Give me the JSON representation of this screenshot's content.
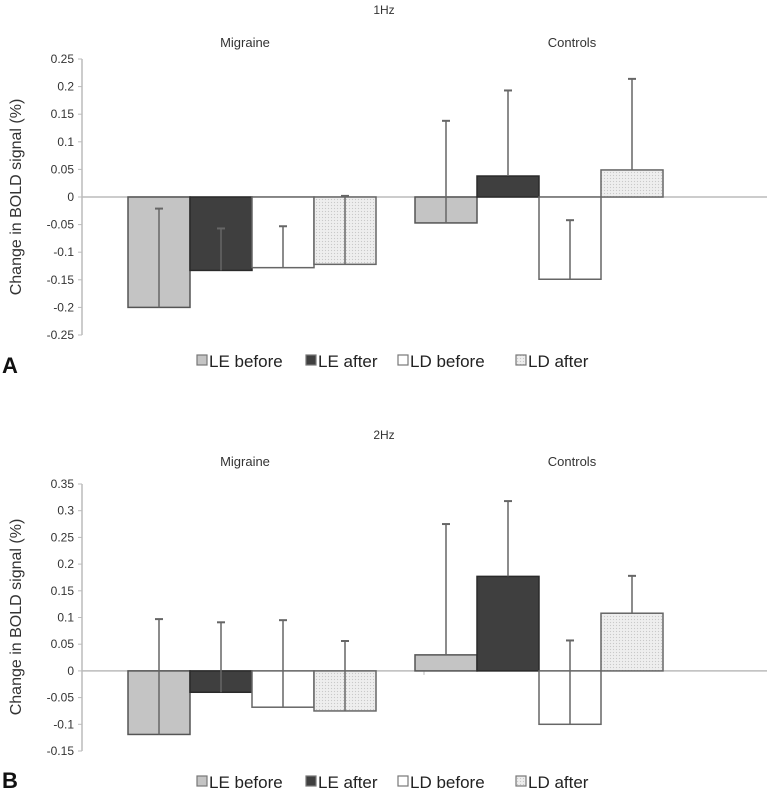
{
  "chart_data": [
    {
      "type": "bar",
      "panel": "A",
      "title": "1Hz",
      "ylabel": "Change in BOLD signal (%)",
      "xlabel": "",
      "ylim": [
        -0.25,
        0.25
      ],
      "yticks": [
        0.25,
        0.2,
        0.15,
        0.1,
        0.05,
        0,
        -0.05,
        -0.1,
        -0.15,
        -0.2,
        -0.25
      ],
      "ytick_labels": [
        "0.25",
        "0.2",
        "0.15",
        "0.1",
        "0.05",
        "0",
        "-0.05",
        "-0.1",
        "-0.15",
        "-0.2",
        "-0.25"
      ],
      "categories": [
        "Migraine",
        "Controls"
      ],
      "grid": false,
      "legend_position": "bottom",
      "series": [
        {
          "name": "LE before",
          "values": [
            -0.2,
            -0.047
          ],
          "error_upper": [
            -0.021,
            0.138
          ]
        },
        {
          "name": "LE after",
          "values": [
            -0.133,
            0.038
          ],
          "error_upper": [
            -0.057,
            0.193
          ]
        },
        {
          "name": "LD before",
          "values": [
            -0.128,
            -0.149
          ],
          "error_upper": [
            -0.053,
            -0.042
          ]
        },
        {
          "name": "LD after",
          "values": [
            -0.122,
            0.049
          ],
          "error_upper": [
            0.002,
            0.214
          ]
        }
      ]
    },
    {
      "type": "bar",
      "panel": "B",
      "title": "2Hz",
      "ylabel": "Change in BOLD signal (%)",
      "xlabel": "",
      "ylim": [
        -0.15,
        0.35
      ],
      "yticks": [
        0.35,
        0.3,
        0.25,
        0.2,
        0.15,
        0.1,
        0.05,
        0,
        -0.05,
        -0.1,
        -0.15
      ],
      "ytick_labels": [
        "0.35",
        "0.3",
        "0.25",
        "0.2",
        "0.15",
        "0.1",
        "0.05",
        "0",
        "-0.05",
        "-0.1",
        "-0.15"
      ],
      "categories": [
        "Migraine",
        "Controls"
      ],
      "grid": false,
      "legend_position": "bottom",
      "series": [
        {
          "name": "LE before",
          "values": [
            -0.119,
            0.03
          ],
          "error_upper": [
            0.097,
            0.275
          ]
        },
        {
          "name": "LE after",
          "values": [
            -0.04,
            0.177
          ],
          "error_upper": [
            0.091,
            0.318
          ]
        },
        {
          "name": "LD before",
          "values": [
            -0.068,
            -0.1
          ],
          "error_upper": [
            0.095,
            0.057
          ]
        },
        {
          "name": "LD after",
          "values": [
            -0.075,
            0.108
          ],
          "error_upper": [
            0.056,
            0.178
          ]
        }
      ]
    }
  ],
  "series_styles": [
    {
      "name": "LE before",
      "fill": "#c4c4c4",
      "stroke": "#555555",
      "pattern": "none"
    },
    {
      "name": "LE after",
      "fill": "#3f3f3f",
      "stroke": "#2a2a2a",
      "pattern": "none"
    },
    {
      "name": "LD before",
      "fill": "#ffffff",
      "stroke": "#666666",
      "pattern": "none"
    },
    {
      "name": "LD after",
      "fill": "#ececec",
      "stroke": "#666666",
      "pattern": "dotted"
    }
  ],
  "legend": {
    "items": [
      "LE before",
      "LE after",
      "LD before",
      "LD after"
    ]
  },
  "colors": {
    "axis": "#bbbbbb",
    "error_bar": "#666666",
    "text": "#333333"
  }
}
